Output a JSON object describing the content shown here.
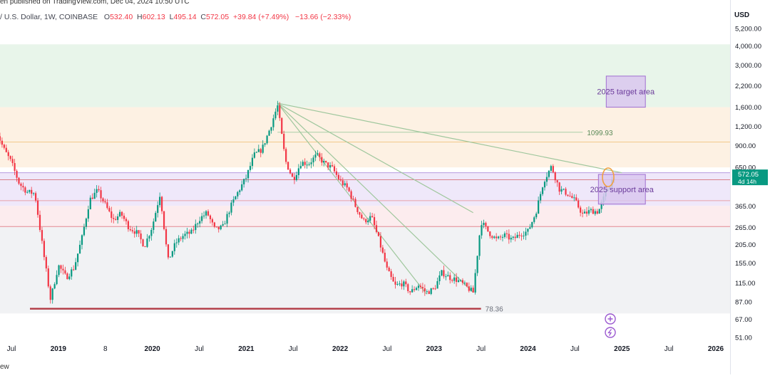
{
  "header": {
    "published": "en published on TradingView.com, Dec 04, 2024 10:50 UTC",
    "symbol": "/ U.S. Dollar, 1W, COINBASE",
    "open_label": "O",
    "open": "532.40",
    "high_label": "H",
    "high": "602.13",
    "low_label": "L",
    "low": "495.14",
    "close_label": "C",
    "close": "572.05",
    "change": "+39.84 (+7.49%)",
    "change2": "−13.66 (−2.33%)"
  },
  "currency": "USD",
  "footer": "ew",
  "colors": {
    "up": "#089981",
    "down": "#f23645",
    "zone_green": "#e8f5ea",
    "zone_orange": "#fdf1e3",
    "zone_purple": "#efe8fa",
    "zone_pink": "#fcecee",
    "zone_grey": "#f1f2f4",
    "box_fill": "#d9c7ee",
    "box_border": "#a06ed0",
    "trend": "#9fc79d"
  },
  "chart_data": {
    "type": "candlestick",
    "y_scale": "log",
    "y_ticks": [
      "5,200.00",
      "4,000.00",
      "3,000.00",
      "2,200.00",
      "1,600.00",
      "1,200.00",
      "900.00",
      "650.00",
      "365.00",
      "265.00",
      "205.00",
      "155.00",
      "115.00",
      "87.00",
      "67.00",
      "51.00"
    ],
    "y_tick_values": [
      5200,
      4000,
      3000,
      2200,
      1600,
      1200,
      900,
      650,
      365,
      265,
      205,
      155,
      115,
      87,
      67,
      51
    ],
    "x_ticks": [
      "Jul",
      "2019",
      "8",
      "2020",
      "Jul",
      "2021",
      "Jul",
      "2022",
      "Jul",
      "2023",
      "Jul",
      "2024",
      "Jul",
      "2025",
      "Jul",
      "2026"
    ],
    "x_tick_dates": [
      "2018-07",
      "2019-01",
      "2019-07",
      "2020-01",
      "2020-07",
      "2021-01",
      "2021-07",
      "2022-01",
      "2022-07",
      "2023-01",
      "2023-07",
      "2024-01",
      "2024-07",
      "2025-01",
      "2025-07",
      "2026-01"
    ],
    "last_price_label": "572.05",
    "countdown_label": "4d 14h",
    "last_price": 572.05,
    "zones": [
      {
        "from": 1600,
        "to": 4100,
        "color": "zone_green"
      },
      {
        "from": 650,
        "to": 1600,
        "color": "zone_orange"
      },
      {
        "from": 365,
        "to": 600,
        "color": "zone_purple"
      },
      {
        "from": 265,
        "to": 365,
        "color": "zone_pink"
      },
      {
        "from": 73,
        "to": 265,
        "color": "zone_grey"
      }
    ],
    "horizontal_lines": [
      {
        "value": 950,
        "color": "#f2c98a"
      },
      {
        "value": 600,
        "color": "#b79be0"
      },
      {
        "value": 540,
        "color": "#d9808a"
      },
      {
        "value": 395,
        "color": "#e8a0a8"
      },
      {
        "value": 268,
        "color": "#e08a92"
      }
    ],
    "levels": [
      {
        "label": "1099.93",
        "value": 1099.93,
        "from": "2021-05",
        "to": "2024-08"
      },
      {
        "label": "78.36",
        "value": 78.36,
        "from": "2018-11",
        "to": "2023-07"
      }
    ],
    "annotations": [
      {
        "text": "2025 target area",
        "from": "2024-11",
        "to": "2025-04",
        "low": 1600,
        "high": 2550
      },
      {
        "text": "2025 support area",
        "from": "2024-10",
        "to": "2025-04",
        "low": 375,
        "high": 585
      }
    ],
    "trendlines": [
      {
        "from": [
          "2021-05",
          1700
        ],
        "to": [
          "2025-01",
          600
        ]
      },
      {
        "from": [
          "2021-05",
          1700
        ],
        "to": [
          "2023-06",
          330
        ]
      },
      {
        "from": [
          "2021-05",
          1700
        ],
        "to": [
          "2023-06",
          100
        ]
      },
      {
        "from": [
          "2021-05",
          1700
        ],
        "to": [
          "2022-12",
          98
        ]
      }
    ],
    "series": [
      {
        "date": "2018-05",
        "price": 1150
      },
      {
        "date": "2018-06",
        "price": 860
      },
      {
        "date": "2018-07",
        "price": 700
      },
      {
        "date": "2018-08",
        "price": 510
      },
      {
        "date": "2018-09",
        "price": 450
      },
      {
        "date": "2018-10",
        "price": 440
      },
      {
        "date": "2018-11",
        "price": 195
      },
      {
        "date": "2018-12",
        "price": 90
      },
      {
        "date": "2019-01",
        "price": 150
      },
      {
        "date": "2019-02",
        "price": 125
      },
      {
        "date": "2019-03",
        "price": 145
      },
      {
        "date": "2019-04",
        "price": 225
      },
      {
        "date": "2019-05",
        "price": 400
      },
      {
        "date": "2019-06",
        "price": 460
      },
      {
        "date": "2019-07",
        "price": 370
      },
      {
        "date": "2019-08",
        "price": 295
      },
      {
        "date": "2019-09",
        "price": 325
      },
      {
        "date": "2019-10",
        "price": 265
      },
      {
        "date": "2019-11",
        "price": 245
      },
      {
        "date": "2019-12",
        "price": 200
      },
      {
        "date": "2020-01",
        "price": 270
      },
      {
        "date": "2020-02",
        "price": 440
      },
      {
        "date": "2020-03",
        "price": 160
      },
      {
        "date": "2020-04",
        "price": 210
      },
      {
        "date": "2020-05",
        "price": 235
      },
      {
        "date": "2020-06",
        "price": 245
      },
      {
        "date": "2020-07",
        "price": 300
      },
      {
        "date": "2020-08",
        "price": 330
      },
      {
        "date": "2020-09",
        "price": 255
      },
      {
        "date": "2020-10",
        "price": 265
      },
      {
        "date": "2020-11",
        "price": 360
      },
      {
        "date": "2020-12",
        "price": 455
      },
      {
        "date": "2021-01",
        "price": 560
      },
      {
        "date": "2021-02",
        "price": 780
      },
      {
        "date": "2021-03",
        "price": 850
      },
      {
        "date": "2021-04",
        "price": 1150
      },
      {
        "date": "2021-05",
        "price": 1640
      },
      {
        "date": "2021-06",
        "price": 720
      },
      {
        "date": "2021-07",
        "price": 540
      },
      {
        "date": "2021-08",
        "price": 700
      },
      {
        "date": "2021-09",
        "price": 690
      },
      {
        "date": "2021-10",
        "price": 780
      },
      {
        "date": "2021-11",
        "price": 690
      },
      {
        "date": "2021-12",
        "price": 640
      },
      {
        "date": "2022-01",
        "price": 530
      },
      {
        "date": "2022-02",
        "price": 470
      },
      {
        "date": "2022-03",
        "price": 360
      },
      {
        "date": "2022-04",
        "price": 290
      },
      {
        "date": "2022-05",
        "price": 310
      },
      {
        "date": "2022-06",
        "price": 215
      },
      {
        "date": "2022-07",
        "price": 140
      },
      {
        "date": "2022-08",
        "price": 110
      },
      {
        "date": "2022-09",
        "price": 115
      },
      {
        "date": "2022-10",
        "price": 100
      },
      {
        "date": "2022-11",
        "price": 112
      },
      {
        "date": "2022-12",
        "price": 100
      },
      {
        "date": "2023-01",
        "price": 105
      },
      {
        "date": "2023-02",
        "price": 135
      },
      {
        "date": "2023-03",
        "price": 125
      },
      {
        "date": "2023-04",
        "price": 120
      },
      {
        "date": "2023-05",
        "price": 110
      },
      {
        "date": "2023-06",
        "price": 100
      },
      {
        "date": "2023-07",
        "price": 290
      },
      {
        "date": "2023-08",
        "price": 245
      },
      {
        "date": "2023-09",
        "price": 220
      },
      {
        "date": "2023-10",
        "price": 235
      },
      {
        "date": "2023-11",
        "price": 220
      },
      {
        "date": "2023-12",
        "price": 240
      },
      {
        "date": "2024-01",
        "price": 250
      },
      {
        "date": "2024-02",
        "price": 330
      },
      {
        "date": "2024-03",
        "price": 530
      },
      {
        "date": "2024-04",
        "price": 660
      },
      {
        "date": "2024-05",
        "price": 470
      },
      {
        "date": "2024-06",
        "price": 440
      },
      {
        "date": "2024-07",
        "price": 395
      },
      {
        "date": "2024-08",
        "price": 320
      },
      {
        "date": "2024-09",
        "price": 340
      },
      {
        "date": "2024-10",
        "price": 335
      },
      {
        "date": "2024-11",
        "price": 450
      },
      {
        "date": "2024-12",
        "price": 572.05
      }
    ]
  }
}
